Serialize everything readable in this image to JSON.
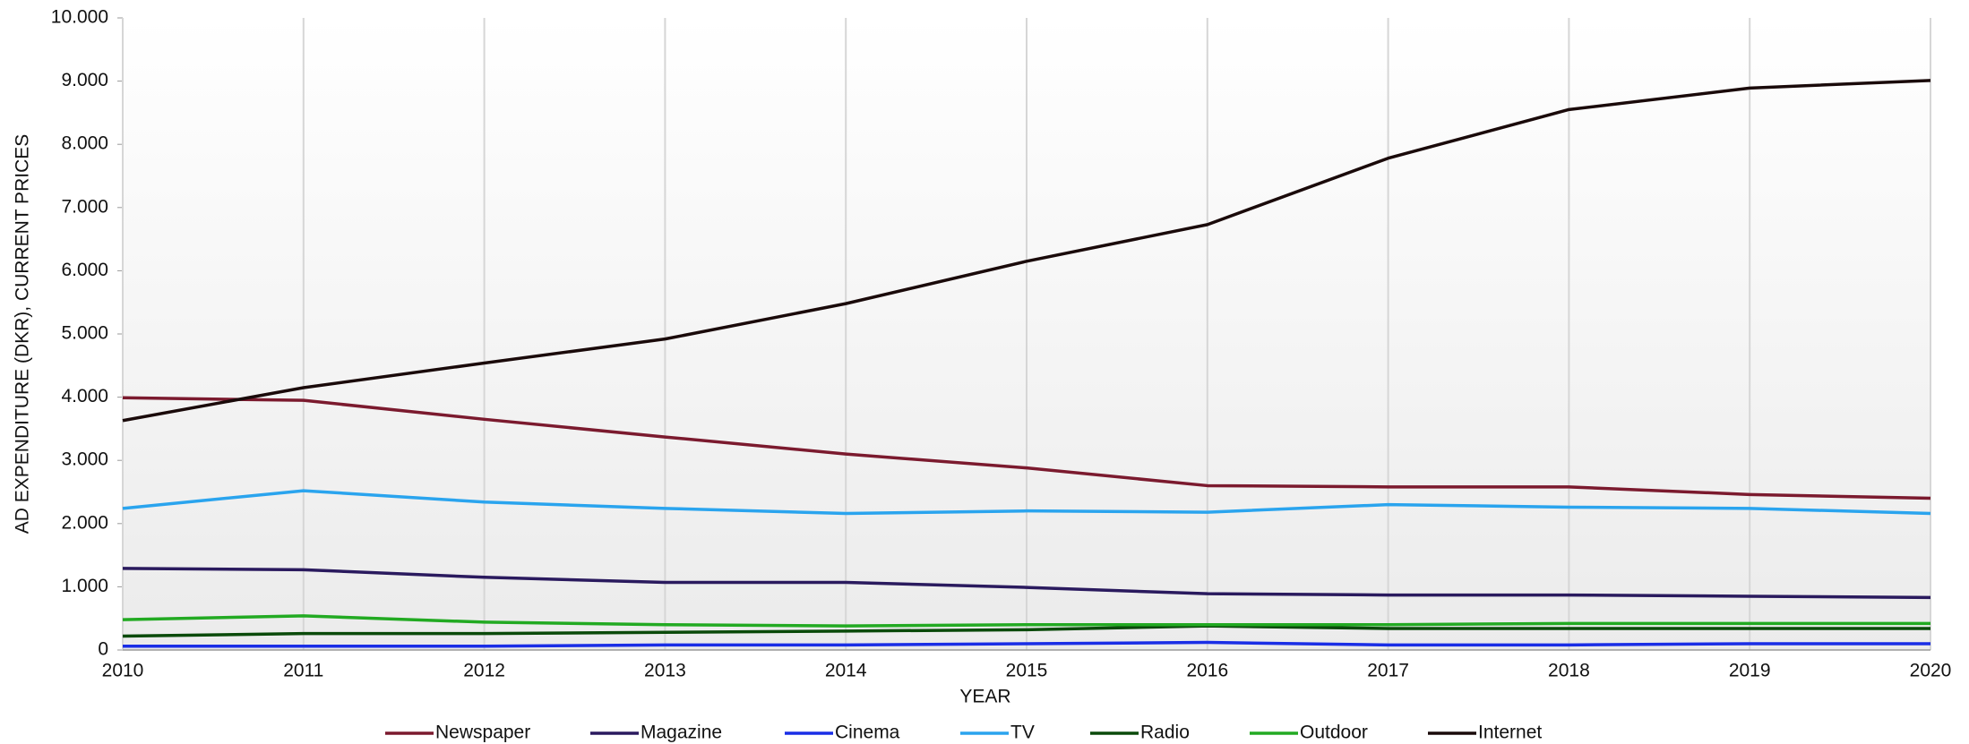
{
  "chart_data": {
    "type": "line",
    "x_label": "YEAR",
    "y_label": "AD EXPENDITURE (DKR), CURRENT PRICES",
    "categories": [
      "2010",
      "2011",
      "2012",
      "2013",
      "2014",
      "2015",
      "2016",
      "2017",
      "2018",
      "2019",
      "2020"
    ],
    "series": [
      {
        "name": "Newspaper",
        "color": "#7b1a2e",
        "values": [
          3990,
          3950,
          3650,
          3370,
          3100,
          2880,
          2600,
          2580,
          2580,
          2460,
          2400
        ]
      },
      {
        "name": "Magazine",
        "color": "#2a1a5e",
        "values": [
          1290,
          1270,
          1150,
          1070,
          1070,
          990,
          890,
          870,
          870,
          850,
          830
        ]
      },
      {
        "name": "Cinema",
        "color": "#1a2ee6",
        "values": [
          60,
          60,
          60,
          80,
          80,
          100,
          120,
          80,
          80,
          100,
          100
        ]
      },
      {
        "name": "TV",
        "color": "#2aa4ee",
        "values": [
          2240,
          2520,
          2340,
          2240,
          2160,
          2200,
          2180,
          2300,
          2260,
          2240,
          2160
        ]
      },
      {
        "name": "Radio",
        "color": "#0a4a0a",
        "values": [
          220,
          260,
          260,
          280,
          300,
          320,
          380,
          340,
          340,
          340,
          340
        ]
      },
      {
        "name": "Outdoor",
        "color": "#22aa22",
        "values": [
          480,
          540,
          440,
          400,
          380,
          400,
          400,
          400,
          420,
          420,
          420
        ]
      },
      {
        "name": "Internet",
        "color": "#1a0a0a",
        "values": [
          3630,
          4150,
          4540,
          4920,
          5480,
          6150,
          6730,
          7780,
          8550,
          8890,
          9010
        ]
      }
    ],
    "ylim": [
      0,
      10000
    ],
    "yticks": [
      0,
      {
        "value": 1000,
        "label": "1.000"
      },
      {
        "value": 2000,
        "label": "2.000"
      },
      {
        "value": 3000,
        "label": "3.000"
      },
      {
        "value": 4000,
        "label": "4.000"
      },
      {
        "value": 5000,
        "label": "5.000"
      },
      {
        "value": 6000,
        "label": "6.000"
      },
      {
        "value": 7000,
        "label": "7.000"
      },
      {
        "value": 8000,
        "label": "8.000"
      },
      {
        "value": 9000,
        "label": "9.000"
      },
      {
        "value": 10000,
        "label": "10.000"
      }
    ],
    "grid": "x",
    "legend": "bottom"
  }
}
